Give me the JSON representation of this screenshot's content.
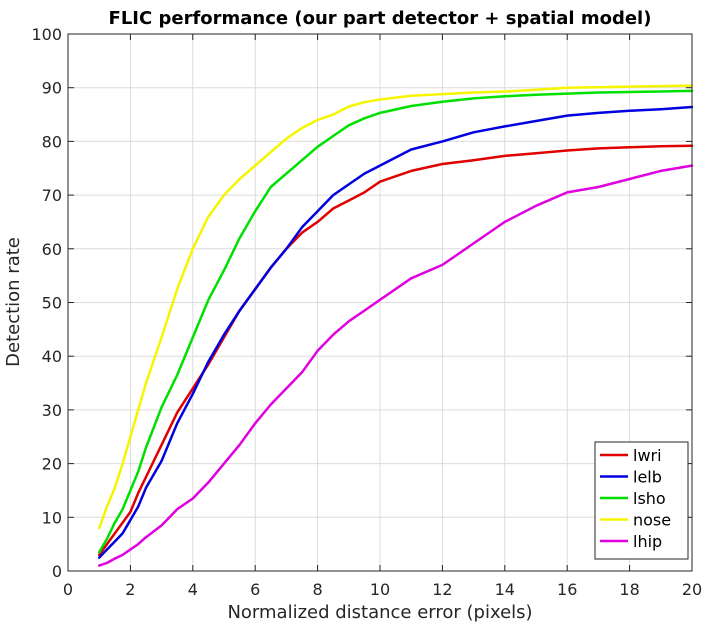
{
  "chart_data": {
    "type": "line",
    "title": "FLIC performance (our part detector + spatial model)",
    "xlabel": "Normalized distance error (pixels)",
    "ylabel": "Detection rate",
    "xlim": [
      0,
      20
    ],
    "ylim": [
      0,
      100
    ],
    "xticks": [
      0,
      2,
      4,
      6,
      8,
      10,
      12,
      14,
      16,
      18,
      20
    ],
    "yticks": [
      0,
      10,
      20,
      30,
      40,
      50,
      60,
      70,
      80,
      90,
      100
    ],
    "grid": true,
    "legend_position": "bottom-right",
    "series": [
      {
        "name": "lwri",
        "color": "#e00000",
        "x": [
          1.0,
          1.25,
          1.5,
          1.75,
          2.0,
          2.25,
          2.5,
          3.0,
          3.5,
          4.0,
          4.5,
          5.0,
          5.5,
          6.0,
          6.5,
          7.0,
          7.5,
          8.0,
          8.5,
          9.0,
          9.5,
          10.0,
          11.0,
          12.0,
          13.0,
          14.0,
          15.0,
          16.0,
          17.0,
          18.0,
          19.0,
          20.0
        ],
        "y": [
          3,
          5,
          7,
          9,
          11,
          14.5,
          17.5,
          23.5,
          29.5,
          34,
          38.5,
          43.5,
          48.5,
          52.5,
          56.5,
          60,
          63,
          65,
          67.5,
          69,
          70.5,
          72.5,
          74.5,
          75.8,
          76.5,
          77.3,
          77.8,
          78.3,
          78.7,
          78.9,
          79.1,
          79.2
        ]
      },
      {
        "name": "lelb",
        "color": "#0000e0",
        "x": [
          1.0,
          1.25,
          1.5,
          1.75,
          2.0,
          2.25,
          2.5,
          3.0,
          3.5,
          4.0,
          4.5,
          5.0,
          5.5,
          6.0,
          6.5,
          7.0,
          7.5,
          8.0,
          8.5,
          9.0,
          9.5,
          10.0,
          11.0,
          12.0,
          13.0,
          14.0,
          15.0,
          16.0,
          17.0,
          18.0,
          19.0,
          20.0
        ],
        "y": [
          2.5,
          4,
          5.5,
          7,
          9.5,
          12,
          15.5,
          20.5,
          27.5,
          33,
          39,
          44,
          48.5,
          52.5,
          56.5,
          60,
          64,
          67,
          70,
          72,
          74,
          75.5,
          78.5,
          80,
          81.7,
          82.8,
          83.8,
          84.8,
          85.3,
          85.7,
          86,
          86.4
        ]
      },
      {
        "name": "lsho",
        "color": "#00e000",
        "x": [
          1.0,
          1.25,
          1.5,
          1.75,
          2.0,
          2.25,
          2.5,
          3.0,
          3.5,
          4.0,
          4.5,
          5.0,
          5.5,
          6.0,
          6.5,
          7.0,
          7.5,
          8.0,
          8.5,
          9.0,
          9.5,
          10.0,
          11.0,
          12.0,
          13.0,
          14.0,
          15.0,
          16.0,
          17.0,
          18.0,
          19.0,
          20.0
        ],
        "y": [
          3.5,
          6,
          9,
          11.5,
          15,
          18.5,
          23,
          30.5,
          36.5,
          43.5,
          50.5,
          56,
          62,
          67,
          71.5,
          74,
          76.5,
          79,
          81,
          83,
          84.3,
          85.3,
          86.6,
          87.4,
          88,
          88.4,
          88.7,
          88.9,
          89.1,
          89.2,
          89.3,
          89.4
        ]
      },
      {
        "name": "nose",
        "color": "#f5f500",
        "x": [
          1.0,
          1.25,
          1.5,
          1.75,
          2.0,
          2.25,
          2.5,
          3.0,
          3.5,
          4.0,
          4.5,
          5.0,
          5.5,
          6.0,
          6.5,
          7.0,
          7.5,
          8.0,
          8.5,
          9.0,
          9.5,
          10.0,
          11.0,
          12.0,
          13.0,
          14.0,
          15.0,
          16.0,
          17.0,
          18.0,
          19.0,
          20.0
        ],
        "y": [
          8,
          12,
          15.5,
          20,
          25,
          30,
          35,
          43.5,
          52.5,
          60,
          66,
          70,
          73,
          75.5,
          78,
          80.5,
          82.5,
          84,
          85,
          86.5,
          87.3,
          87.8,
          88.5,
          88.8,
          89.1,
          89.3,
          89.6,
          90,
          90.1,
          90.2,
          90.3,
          90.4
        ]
      },
      {
        "name": "lhip",
        "color": "#e000e0",
        "x": [
          1.0,
          1.25,
          1.5,
          1.75,
          2.0,
          2.25,
          2.5,
          3.0,
          3.5,
          4.0,
          4.5,
          5.0,
          5.5,
          6.0,
          6.5,
          7.0,
          7.5,
          8.0,
          8.5,
          9.0,
          9.5,
          10.0,
          11.0,
          12.0,
          13.0,
          14.0,
          15.0,
          16.0,
          17.0,
          18.0,
          19.0,
          20.0
        ],
        "y": [
          1,
          1.5,
          2.3,
          3,
          4,
          5,
          6.3,
          8.5,
          11.5,
          13.5,
          16.5,
          20,
          23.5,
          27.5,
          31,
          34,
          37,
          41,
          44,
          46.5,
          48.5,
          50.5,
          54.5,
          57,
          61,
          65,
          68,
          70.5,
          71.5,
          73,
          74.5,
          75.5
        ]
      }
    ]
  }
}
